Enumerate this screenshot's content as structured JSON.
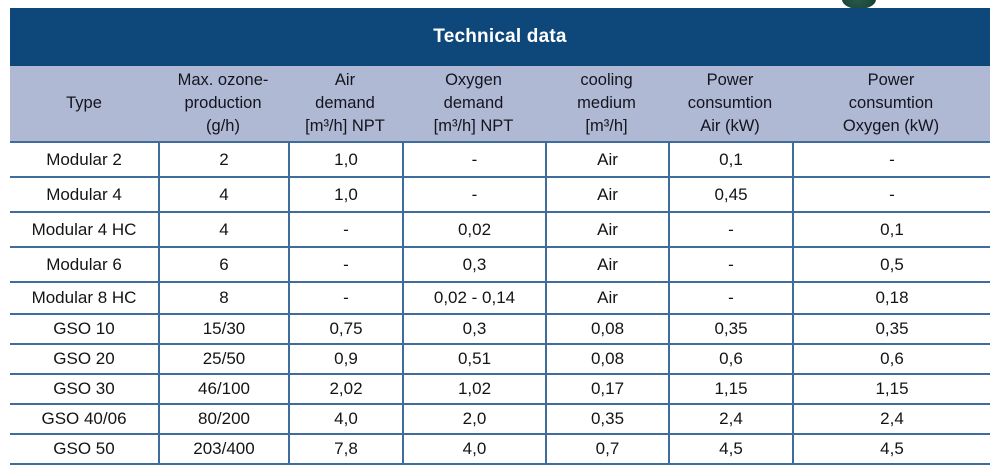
{
  "title": "Technical data",
  "table": {
    "columns": [
      {
        "id": "type",
        "lines": [
          "Type"
        ]
      },
      {
        "id": "max-ozone-production",
        "lines": [
          "Max. ozone-",
          "production",
          "(g/h)"
        ]
      },
      {
        "id": "air-demand",
        "lines": [
          "Air",
          "demand",
          "[m³/h] NPT"
        ]
      },
      {
        "id": "oxygen-demand",
        "lines": [
          "Oxygen",
          "demand",
          "[m³/h] NPT"
        ]
      },
      {
        "id": "cooling-medium",
        "lines": [
          "cooling",
          "medium",
          "[m³/h]"
        ]
      },
      {
        "id": "power-consumtion-air",
        "lines": [
          "Power",
          "consumtion",
          "Air (kW)"
        ]
      },
      {
        "id": "power-consumtion-oxygen",
        "lines": [
          "Power",
          "consumtion",
          "Oxygen (kW)"
        ]
      }
    ],
    "rows": [
      {
        "type": "Modular 2",
        "cells": [
          "Modular 2",
          "2",
          "1,0",
          "-",
          "Air",
          "0,1",
          "-"
        ]
      },
      {
        "type": "Modular 4",
        "cells": [
          "Modular 4",
          "4",
          "1,0",
          "-",
          "Air",
          "0,45",
          "-"
        ]
      },
      {
        "type": "Modular 4 HC",
        "cells": [
          "Modular 4 HC",
          "4",
          "-",
          "0,02",
          "Air",
          "-",
          "0,1"
        ]
      },
      {
        "type": "Modular 6",
        "cells": [
          "Modular 6",
          "6",
          "-",
          "0,3",
          "Air",
          "-",
          "0,5"
        ]
      },
      {
        "type": "Modular 8 HC",
        "cells": [
          "Modular 8 HC",
          "8",
          "-",
          "0,02 - 0,14",
          "Air",
          "-",
          "0,18"
        ]
      },
      {
        "type": "GSO 10",
        "cells": [
          "GSO 10",
          "15/30",
          "0,75",
          "0,3",
          "0,08",
          "0,35",
          "0,35"
        ]
      },
      {
        "type": "GSO 20",
        "cells": [
          "GSO 20",
          "25/50",
          "0,9",
          "0,51",
          "0,08",
          "0,6",
          "0,6"
        ]
      },
      {
        "type": "GSO 30",
        "cells": [
          "GSO 30",
          "46/100",
          "2,02",
          "1,02",
          "0,17",
          "1,15",
          "1,15"
        ]
      },
      {
        "type": "GSO 40/06",
        "cells": [
          "GSO 40/06",
          "80/200",
          "4,0",
          "2,0",
          "0,35",
          "2,4",
          "2,4"
        ]
      },
      {
        "type": "GSO 50",
        "cells": [
          "GSO 50",
          "203/400",
          "7,8",
          "4,0",
          "0,7",
          "4,5",
          "4,5"
        ]
      }
    ]
  },
  "colors": {
    "title_bar": "#0E4779",
    "header_band": "#AFB9D3",
    "border": "#3E6D9C",
    "title_text": "#FFFFFF",
    "body_text": "#141414",
    "logo_green": "#1E4C3E"
  }
}
